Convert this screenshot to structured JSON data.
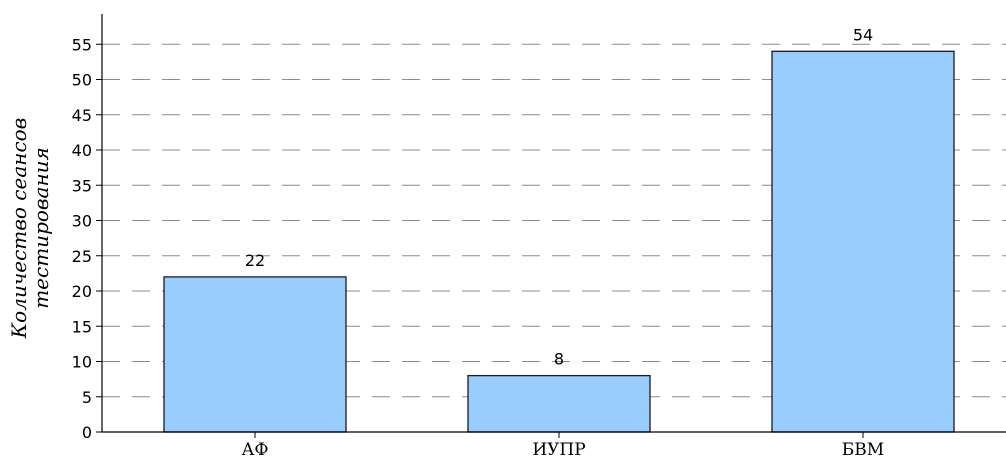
{
  "chart_data": {
    "type": "bar",
    "categories": [
      "АФ",
      "ИУПР",
      "БВМ"
    ],
    "values": [
      22,
      8,
      54
    ],
    "data_labels": [
      "22",
      "8",
      "54"
    ],
    "title": "",
    "xlabel": "",
    "ylabel_lines": [
      "Количество сеансов",
      "тестирования"
    ],
    "ylim": [
      0,
      55
    ],
    "yticks": [
      0,
      5,
      10,
      15,
      20,
      25,
      30,
      35,
      40,
      45,
      50,
      55
    ],
    "grid": "horizontal dashed",
    "colors": {
      "bar_fill": "#99ccff",
      "bar_edge": "#1a1a1a",
      "grid": "#8c8c8c"
    }
  }
}
